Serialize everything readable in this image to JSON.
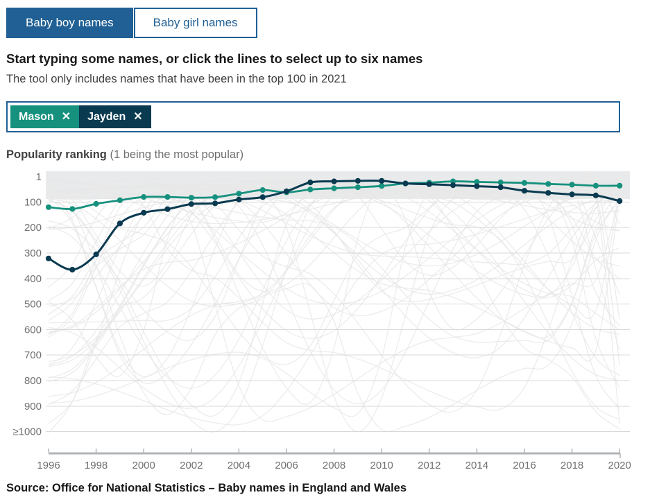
{
  "tabs": [
    {
      "label": "Baby boy names",
      "active": true
    },
    {
      "label": "Baby girl names",
      "active": false
    }
  ],
  "heading": "Start typing some names, or click the lines to select up to six names",
  "subheading": "The tool only includes names that have been in the top 100 in 2021",
  "name_filter": {
    "remove_icon": "✕",
    "tags": [
      {
        "label": "Mason",
        "color": "#16917e"
      },
      {
        "label": "Jayden",
        "color": "#093a50"
      }
    ]
  },
  "popularity_label": {
    "bold": "Popularity ranking",
    "note": "(1 being the most popular)"
  },
  "source": "Source: Office for National Statistics – Baby names in England and Wales",
  "colors": {
    "brand_blue": "#206095",
    "mason_teal": "#16917e",
    "jayden_navy": "#093a50",
    "gridline": "#d8d8d8",
    "axis_line": "#b1b4b7",
    "tick_text": "#6f7071"
  },
  "chart_data": {
    "type": "line",
    "title": "Popularity ranking (1 being the most popular)",
    "x_range": [
      1996,
      2020
    ],
    "years": [
      1996,
      1997,
      1998,
      1999,
      2000,
      2001,
      2002,
      2003,
      2004,
      2005,
      2006,
      2007,
      2008,
      2009,
      2010,
      2011,
      2012,
      2013,
      2014,
      2015,
      2016,
      2017,
      2018,
      2019,
      2020
    ],
    "x_ticks": [
      1996,
      1998,
      2000,
      2002,
      2004,
      2006,
      2008,
      2010,
      2012,
      2014,
      2016,
      2018,
      2020
    ],
    "y_ticks": [
      {
        "label": "1",
        "rank": 1
      },
      {
        "label": "100",
        "rank": 100
      },
      {
        "label": "200",
        "rank": 200
      },
      {
        "label": "300",
        "rank": 300
      },
      {
        "label": "400",
        "rank": 400
      },
      {
        "label": "500",
        "rank": 500
      },
      {
        "label": "600",
        "rank": 600
      },
      {
        "label": "700",
        "rank": 700
      },
      {
        "label": "800",
        "rank": 800
      },
      {
        "label": "900",
        "rank": 900
      },
      {
        "label": "≥1000",
        "rank": 1000
      }
    ],
    "y_axis_inverted": true,
    "grid": true,
    "legend_position": "none",
    "series": [
      {
        "name": "Mason",
        "color": "#16917e",
        "values": [
          120,
          127,
          107,
          93,
          80,
          80,
          83,
          81,
          67,
          53,
          62,
          51,
          46,
          42,
          37,
          27,
          24,
          19,
          21,
          23,
          25,
          29,
          32,
          36,
          36
        ]
      },
      {
        "name": "Jayden",
        "color": "#093a50",
        "values": [
          321,
          365,
          305,
          184,
          142,
          128,
          108,
          105,
          90,
          81,
          58,
          23,
          19,
          17,
          17,
          27,
          30,
          34,
          38,
          42,
          56,
          64,
          70,
          74,
          96
        ]
      }
    ],
    "background": {
      "description": "all other top-100 boy names drawn as faint unlabeled gray lines; dense overlap forms a solid band near the top ranks",
      "band_color": "#e9eaeb",
      "line_color": "#e7e7e7",
      "line_count": 46
    }
  }
}
